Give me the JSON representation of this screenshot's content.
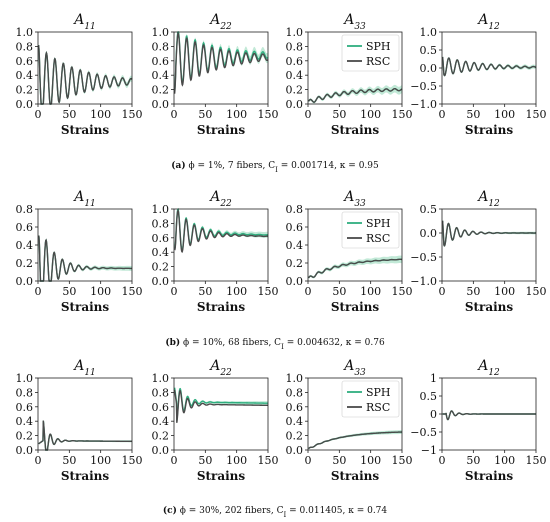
{
  "colors": {
    "sph": "#2fae7f",
    "rsc": "#4a4a4a",
    "band": "#a8e0c6"
  },
  "legend": [
    "SPH",
    "RSC"
  ],
  "rows": [
    {
      "caption": "(a) ϕ = 1%, 7 fibers, C_I = 0.001714, κ = 0.95",
      "caption_label": "(a)",
      "caption_text": "ϕ = 1%, 7 fibers, C",
      "caption_sub": "I",
      "caption_tail": " = 0.001714, κ = 0.95"
    },
    {
      "caption": "(b) ϕ = 10%, 68 fibers, C_I = 0.004632, κ = 0.76",
      "caption_label": "(b)",
      "caption_text": "ϕ = 10%, 68 fibers, C",
      "caption_sub": "I",
      "caption_tail": " = 0.004632, κ = 0.76"
    },
    {
      "caption": "(c) ϕ = 30%, 202 fibers, C_I = 0.011405, κ = 0.74",
      "caption_label": "(c)",
      "caption_text": "ϕ = 30%, 202 fibers, C",
      "caption_sub": "I",
      "caption_tail": " = 0.011405, κ = 0.74"
    }
  ],
  "chart_data": [
    {
      "row": 0,
      "col": 0,
      "type": "line",
      "title": "A11",
      "title_sub": "11",
      "xlabel": "Strains",
      "xlim": [
        0,
        150
      ],
      "ylim": [
        0,
        1.0
      ],
      "xticks": [
        "0",
        "50",
        "100",
        "150"
      ],
      "yticks": [
        "0.0",
        "0.2",
        "0.4",
        "0.6",
        "0.8",
        "1.0"
      ],
      "ytick_values": [
        0,
        0.2,
        0.4,
        0.6,
        0.8,
        1.0
      ],
      "legend": false,
      "model": {
        "kind": "osc",
        "mean": 0.31,
        "mean_end": 0.31,
        "amp0": 0.5,
        "tau": 60,
        "period": 13.5,
        "phase": 0,
        "start": 0.85,
        "sph_shift": 0.0,
        "band": 0.03
      },
      "series": [
        {
          "name": "SPH"
        },
        {
          "name": "RSC"
        }
      ]
    },
    {
      "row": 0,
      "col": 1,
      "type": "line",
      "title": "A22",
      "title_sub": "22",
      "xlabel": "Strains",
      "xlim": [
        0,
        150
      ],
      "ylim": [
        0,
        1.0
      ],
      "xticks": [
        "0",
        "50",
        "100",
        "150"
      ],
      "yticks": [
        "0.0",
        "0.2",
        "0.4",
        "0.6",
        "0.8",
        "1.0"
      ],
      "ytick_values": [
        0,
        0.2,
        0.4,
        0.6,
        0.8,
        1.0
      ],
      "legend": false,
      "model": {
        "kind": "osc",
        "mean": 0.6,
        "mean_end": 0.65,
        "amp0": -0.42,
        "tau": 65,
        "period": 13.5,
        "phase": 0,
        "start": 0.1,
        "sph_shift": 0.03,
        "band": 0.05
      },
      "series": [
        {
          "name": "SPH"
        },
        {
          "name": "RSC"
        }
      ]
    },
    {
      "row": 0,
      "col": 2,
      "type": "line",
      "title": "A33",
      "title_sub": "33",
      "xlabel": "Strains",
      "xlim": [
        0,
        150
      ],
      "ylim": [
        0,
        1.0
      ],
      "xticks": [
        "0",
        "50",
        "100",
        "150"
      ],
      "yticks": [
        "0.0",
        "0.2",
        "0.4",
        "0.6",
        "0.8",
        "1.0"
      ],
      "ytick_values": [
        0,
        0.2,
        0.4,
        0.6,
        0.8,
        1.0
      ],
      "legend": true,
      "model": {
        "kind": "ramp",
        "v0": 0.02,
        "v1": 0.2,
        "amp0": 0.03,
        "tau": 200,
        "period": 13.5,
        "sph_shift": 0.0,
        "band": 0.04
      },
      "series": [
        {
          "name": "SPH"
        },
        {
          "name": "RSC"
        }
      ]
    },
    {
      "row": 0,
      "col": 3,
      "type": "line",
      "title": "A12",
      "title_sub": "12",
      "xlabel": "Strains",
      "xlim": [
        0,
        150
      ],
      "ylim": [
        -1.0,
        1.0
      ],
      "xticks": [
        "0",
        "50",
        "100",
        "150"
      ],
      "yticks": [
        "−1.0",
        "−0.5",
        "0.0",
        "0.5",
        "1.0"
      ],
      "ytick_values": [
        -1,
        -0.5,
        0,
        0.5,
        1
      ],
      "legend": false,
      "model": {
        "kind": "osc",
        "mean": 0.05,
        "mean_end": 0.02,
        "amp0": 0.28,
        "tau": 55,
        "period": 13.5,
        "phase": 1.2,
        "start": 0.45,
        "sph_shift": 0.0,
        "band": 0.04
      },
      "series": [
        {
          "name": "SPH"
        },
        {
          "name": "RSC"
        }
      ]
    },
    {
      "row": 1,
      "col": 0,
      "type": "line",
      "title": "A11",
      "title_sub": "11",
      "xlabel": "Strains",
      "xlim": [
        0,
        150
      ],
      "ylim": [
        0,
        0.8
      ],
      "xticks": [
        "0",
        "50",
        "100",
        "150"
      ],
      "yticks": [
        "0.0",
        "0.2",
        "0.4",
        "0.6",
        "0.8"
      ],
      "ytick_values": [
        0,
        0.2,
        0.4,
        0.6,
        0.8
      ],
      "legend": false,
      "model": {
        "kind": "osc",
        "mean": 0.15,
        "mean_end": 0.14,
        "amp0": 0.55,
        "tau": 22,
        "period": 13,
        "phase": 0,
        "start": 0.45,
        "sph_shift": 0.0,
        "band": 0.02
      },
      "series": [
        {
          "name": "SPH"
        },
        {
          "name": "RSC"
        }
      ]
    },
    {
      "row": 1,
      "col": 1,
      "type": "line",
      "title": "A22",
      "title_sub": "22",
      "xlabel": "Strains",
      "xlim": [
        0,
        150
      ],
      "ylim": [
        0,
        1.0
      ],
      "xticks": [
        "0",
        "50",
        "100",
        "150"
      ],
      "yticks": [
        "0.0",
        "0.2",
        "0.4",
        "0.6",
        "0.8",
        "1.0"
      ],
      "ytick_values": [
        0,
        0.2,
        0.4,
        0.6,
        0.8,
        1.0
      ],
      "legend": false,
      "model": {
        "kind": "osc",
        "mean": 0.66,
        "mean_end": 0.62,
        "amp0": -0.4,
        "tau": 28,
        "period": 13,
        "phase": 0,
        "start": 0.5,
        "sph_shift": 0.02,
        "band": 0.03
      },
      "series": [
        {
          "name": "SPH"
        },
        {
          "name": "RSC"
        }
      ]
    },
    {
      "row": 1,
      "col": 2,
      "type": "line",
      "title": "A33",
      "title_sub": "33",
      "xlabel": "Strains",
      "xlim": [
        0,
        150
      ],
      "ylim": [
        0,
        0.8
      ],
      "xticks": [
        "0",
        "50",
        "100",
        "150"
      ],
      "yticks": [
        "0.0",
        "0.2",
        "0.4",
        "0.6",
        "0.8"
      ],
      "ytick_values": [
        0,
        0.2,
        0.4,
        0.6,
        0.8
      ],
      "legend": true,
      "model": {
        "kind": "ramp",
        "v0": 0.02,
        "v1": 0.24,
        "amp0": 0.02,
        "tau": 60,
        "period": 13,
        "sph_shift": 0.0,
        "band": 0.03
      },
      "series": [
        {
          "name": "SPH"
        },
        {
          "name": "RSC"
        }
      ]
    },
    {
      "row": 1,
      "col": 3,
      "type": "line",
      "title": "A12",
      "title_sub": "12",
      "xlabel": "Strains",
      "xlim": [
        0,
        150
      ],
      "ylim": [
        -1.0,
        0.5
      ],
      "xticks": [
        "0",
        "50",
        "100",
        "150"
      ],
      "yticks": [
        "−1.0",
        "−0.5",
        "0.0",
        "0.5"
      ],
      "ytick_values": [
        -1,
        -0.5,
        0,
        0.5
      ],
      "legend": false,
      "model": {
        "kind": "osc",
        "mean": 0.0,
        "mean_end": 0.0,
        "amp0": 0.32,
        "tau": 22,
        "period": 13,
        "phase": 1.2,
        "start": 0.4,
        "sph_shift": 0.0,
        "band": 0.02
      },
      "series": [
        {
          "name": "SPH"
        },
        {
          "name": "RSC"
        }
      ]
    },
    {
      "row": 2,
      "col": 0,
      "type": "line",
      "title": "A11",
      "title_sub": "11",
      "xlabel": "Strains",
      "xlim": [
        0,
        150
      ],
      "ylim": [
        0,
        1.0
      ],
      "xticks": [
        "0",
        "50",
        "100",
        "150"
      ],
      "yticks": [
        "0.0",
        "0.2",
        "0.4",
        "0.6",
        "0.8",
        "1.0"
      ],
      "ytick_values": [
        0,
        0.2,
        0.4,
        0.6,
        0.8,
        1.0
      ],
      "legend": false,
      "model": {
        "kind": "osc",
        "mean": 0.13,
        "mean_end": 0.12,
        "amp0": 0.3,
        "tau": 10,
        "period": 12,
        "phase": 0,
        "start": 0.08,
        "delay": 8,
        "sph_shift": 0.0,
        "band": 0.01
      },
      "series": [
        {
          "name": "SPH"
        },
        {
          "name": "RSC"
        }
      ]
    },
    {
      "row": 2,
      "col": 1,
      "type": "line",
      "title": "A22",
      "title_sub": "22",
      "xlabel": "Strains",
      "xlim": [
        0,
        150
      ],
      "ylim": [
        0,
        1.0
      ],
      "xticks": [
        "0",
        "50",
        "100",
        "150"
      ],
      "yticks": [
        "0.0",
        "0.2",
        "0.4",
        "0.6",
        "0.8",
        "1.0"
      ],
      "ytick_values": [
        0,
        0.2,
        0.4,
        0.6,
        0.8,
        1.0
      ],
      "legend": false,
      "model": {
        "kind": "osc",
        "mean": 0.64,
        "mean_end": 0.62,
        "amp0": -0.28,
        "tau": 14,
        "period": 12,
        "phase": 0,
        "start": 0.9,
        "delay": 4,
        "sph_shift": 0.03,
        "band": 0.02
      },
      "series": [
        {
          "name": "SPH"
        },
        {
          "name": "RSC"
        }
      ]
    },
    {
      "row": 2,
      "col": 2,
      "type": "line",
      "title": "A33",
      "title_sub": "33",
      "xlabel": "Strains",
      "xlim": [
        0,
        150
      ],
      "ylim": [
        0,
        1.0
      ],
      "xticks": [
        "0",
        "50",
        "100",
        "150"
      ],
      "yticks": [
        "0.0",
        "0.2",
        "0.4",
        "0.6",
        "0.8",
        "1.0"
      ],
      "ytick_values": [
        0,
        0.2,
        0.4,
        0.6,
        0.8,
        1.0
      ],
      "legend": true,
      "model": {
        "kind": "ramp",
        "v0": 0.01,
        "v1": 0.25,
        "amp0": 0.01,
        "tau": 25,
        "period": 12,
        "sph_shift": 0.0,
        "band": 0.02
      },
      "series": [
        {
          "name": "SPH"
        },
        {
          "name": "RSC"
        }
      ]
    },
    {
      "row": 2,
      "col": 3,
      "type": "line",
      "title": "A12",
      "title_sub": "12",
      "xlabel": "Strains",
      "xlim": [
        0,
        150
      ],
      "ylim": [
        -1.0,
        1.0
      ],
      "xticks": [
        "0",
        "50",
        "100",
        "150"
      ],
      "yticks": [
        "−1",
        "−0.5",
        "0",
        "0.5",
        "1"
      ],
      "ytick_values": [
        -1,
        -0.5,
        0,
        0.5,
        1
      ],
      "legend": false,
      "model": {
        "kind": "osc",
        "mean": 0.0,
        "mean_end": 0.0,
        "amp0": 0.22,
        "tau": 10,
        "period": 12,
        "phase": 1.2,
        "start": 0.0,
        "delay": 6,
        "sph_shift": 0.0,
        "band": 0.01
      },
      "series": [
        {
          "name": "SPH"
        },
        {
          "name": "RSC"
        }
      ]
    }
  ]
}
